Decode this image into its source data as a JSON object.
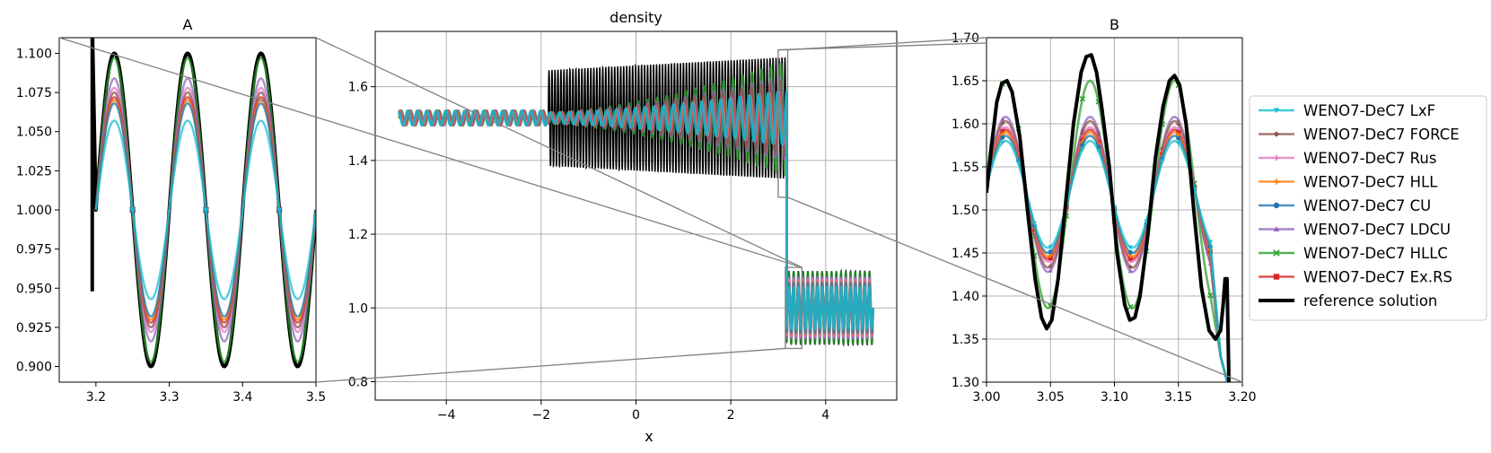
{
  "chart_data": [
    {
      "id": "inset-a",
      "type": "line",
      "title": "A",
      "xlabel": "",
      "ylabel": "",
      "xlim": [
        3.15,
        3.5
      ],
      "ylim": [
        0.89,
        1.11
      ],
      "xticks": [
        3.2,
        3.3,
        3.4,
        3.5
      ],
      "xtick_labels": [
        "3.2",
        "3.3",
        "3.4",
        "3.5"
      ],
      "yticks": [
        0.9,
        0.925,
        0.95,
        0.975,
        1.0,
        1.025,
        1.05,
        1.075,
        1.1
      ],
      "ytick_labels": [
        "0.900",
        "0.925",
        "0.950",
        "0.975",
        "1.000",
        "1.025",
        "1.050",
        "1.075",
        "1.100"
      ],
      "grid": false,
      "wave": {
        "x_start": 3.2,
        "x_end": 3.5,
        "period": 0.1,
        "phase_x_max": 3.225,
        "mean": 1.0
      },
      "series_amplitudes": {
        "WENO7-DeC7 LxF": 0.057,
        "WENO7-DeC7 FORCE": 0.075,
        "WENO7-DeC7 Rus": 0.078,
        "WENO7-DeC7 HLL": 0.07,
        "WENO7-DeC7 CU": 0.068,
        "WENO7-DeC7 LDCU": 0.084,
        "WENO7-DeC7 HLLC": 0.097,
        "WENO7-DeC7 Ex.RS": 0.072,
        "reference solution": 0.1
      }
    },
    {
      "id": "main",
      "type": "line",
      "title": "density",
      "xlabel": "x",
      "ylabel": "",
      "xlim": [
        -5.5,
        5.5
      ],
      "ylim": [
        0.75,
        1.75
      ],
      "xticks": [
        -4,
        -2,
        0,
        2,
        4
      ],
      "xtick_labels": [
        "−4",
        "−2",
        "0",
        "2",
        "4"
      ],
      "yticks": [
        0.8,
        1.0,
        1.2,
        1.4,
        1.6
      ],
      "ytick_labels": [
        "0.8",
        "1.0",
        "1.2",
        "1.4",
        "1.6"
      ],
      "grid": true,
      "shock_x": 3.18,
      "left_state": {
        "x_start": -5.0,
        "x_end": -1.9,
        "value": 1.515,
        "amplitude": 0.02,
        "period": 0.2
      },
      "reference_oscillation": {
        "x_start": -1.85,
        "x_end": 3.18,
        "center": 1.515,
        "amplitude_min": 0.13,
        "amplitude_max": 0.165,
        "period": 0.063
      },
      "right_state": {
        "x_start": 3.18,
        "x_end": 5.0,
        "mean": 1.0,
        "amplitude": 0.1,
        "period": 0.1
      }
    },
    {
      "id": "inset-b",
      "type": "line",
      "title": "B",
      "xlabel": "",
      "ylabel": "",
      "xlim": [
        3.0,
        3.2
      ],
      "ylim": [
        1.3,
        1.7
      ],
      "xticks": [
        3.0,
        3.05,
        3.1,
        3.15,
        3.2
      ],
      "xtick_labels": [
        "3.00",
        "3.05",
        "3.10",
        "3.15",
        "3.20"
      ],
      "yticks": [
        1.3,
        1.35,
        1.4,
        1.45,
        1.5,
        1.55,
        1.6,
        1.65,
        1.7
      ],
      "ytick_labels": [
        "1.30",
        "1.35",
        "1.40",
        "1.45",
        "1.50",
        "1.55",
        "1.60",
        "1.65",
        "1.70"
      ],
      "grid": true,
      "reference_solution": {
        "x": [
          3.0,
          3.004,
          3.008,
          3.012,
          3.016,
          3.02,
          3.026,
          3.032,
          3.038,
          3.043,
          3.047,
          3.051,
          3.056,
          3.062,
          3.068,
          3.074,
          3.078,
          3.082,
          3.086,
          3.09,
          3.096,
          3.102,
          3.108,
          3.112,
          3.116,
          3.12,
          3.126,
          3.132,
          3.138,
          3.143,
          3.147,
          3.151,
          3.156,
          3.162,
          3.168,
          3.174,
          3.179,
          3.183,
          3.185,
          3.1865,
          3.188,
          3.1895,
          3.19
        ],
        "y": [
          1.52,
          1.575,
          1.625,
          1.647,
          1.65,
          1.637,
          1.585,
          1.5,
          1.42,
          1.375,
          1.362,
          1.372,
          1.42,
          1.51,
          1.6,
          1.66,
          1.678,
          1.68,
          1.66,
          1.62,
          1.55,
          1.45,
          1.39,
          1.372,
          1.375,
          1.4,
          1.47,
          1.56,
          1.62,
          1.65,
          1.656,
          1.645,
          1.6,
          1.5,
          1.41,
          1.36,
          1.35,
          1.36,
          1.39,
          1.42,
          1.42,
          1.3,
          1.3
        ]
      },
      "wave": {
        "x_start": 3.0,
        "x_end": 3.19,
        "center": 1.518,
        "period": 0.066,
        "phase_x_max": 3.015
      },
      "series_amplitudes": {
        "WENO7-DeC7 LxF": 0.062,
        "WENO7-DeC7 FORCE": 0.085,
        "WENO7-DeC7 Rus": 0.078,
        "WENO7-DeC7 HLL": 0.072,
        "WENO7-DeC7 CU": 0.068,
        "WENO7-DeC7 LDCU": 0.09,
        "WENO7-DeC7 HLLC": 0.132,
        "WENO7-DeC7 Ex.RS": 0.075
      }
    }
  ],
  "legend": {
    "placement": "right",
    "entries": [
      {
        "label": "WENO7-DeC7 LxF",
        "color": "#17becf",
        "marker": "triangle-down",
        "width": 2.5
      },
      {
        "label": "WENO7-DeC7 FORCE",
        "color": "#8c564b",
        "marker": "diamond",
        "width": 2.5
      },
      {
        "label": "WENO7-DeC7 Rus",
        "color": "#e377c2",
        "marker": "plus",
        "width": 2.5
      },
      {
        "label": "WENO7-DeC7 HLL",
        "color": "#ff7f0e",
        "marker": "plus",
        "width": 2.5
      },
      {
        "label": "WENO7-DeC7 CU",
        "color": "#1f77b4",
        "marker": "circle",
        "width": 2.5
      },
      {
        "label": "WENO7-DeC7 LDCU",
        "color": "#9467bd",
        "marker": "triangle-up",
        "width": 2.5
      },
      {
        "label": "WENO7-DeC7 HLLC",
        "color": "#2ca02c",
        "marker": "x",
        "width": 2.5
      },
      {
        "label": "WENO7-DeC7 Ex.RS",
        "color": "#d62728",
        "marker": "square",
        "width": 2.5
      },
      {
        "label": "reference solution",
        "color": "#000000",
        "marker": "none",
        "width": 4
      }
    ]
  },
  "zoom_box_color": "#808080"
}
